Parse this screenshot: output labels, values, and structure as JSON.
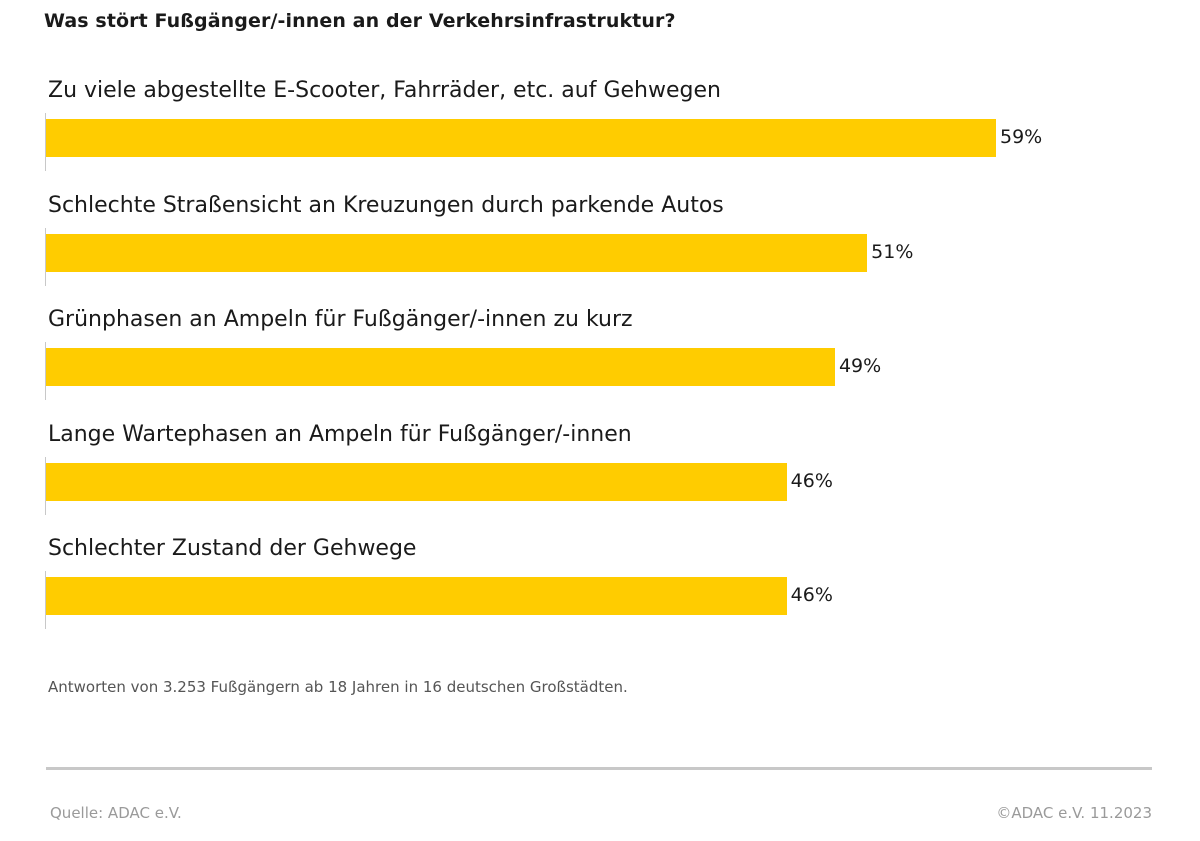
{
  "chart_data": {
    "type": "bar",
    "orientation": "horizontal",
    "title": "Was stört Fußgänger/-innen an der Verkehrsinfrastruktur?",
    "categories": [
      "Zu viele abgestellte E-Scooter, Fahrräder, etc. auf Gehwegen",
      "Schlechte Straßensicht an Kreuzungen durch parkende Autos",
      "Grünphasen an Ampeln für Fußgänger/-innen zu kurz",
      "Lange Wartephasen an Ampeln für Fußgänger/-innen",
      "Schlechter Zustand der Gehwege"
    ],
    "values": [
      59,
      51,
      49,
      46,
      46
    ],
    "value_labels": [
      "59%",
      "51%",
      "49%",
      "46%",
      "46%"
    ],
    "unit": "%",
    "xlim": [
      0,
      100
    ],
    "grid": false,
    "bar_color": "#ffcc00"
  },
  "note": "Antworten von 3.253 Fußgängern ab 18 Jahren in 16 deutschen Großstädten.",
  "footer": {
    "source": "Quelle: ADAC e.V.",
    "copyright": "©ADAC e.V.  11.2023"
  }
}
